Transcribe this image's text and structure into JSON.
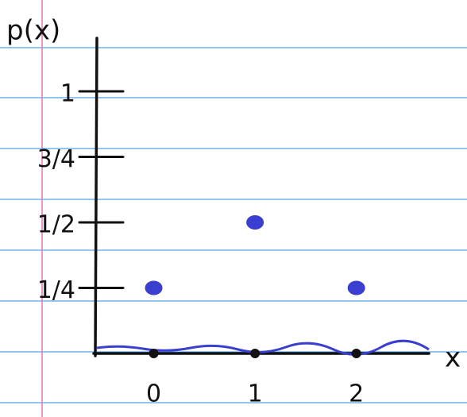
{
  "chart_data": {
    "type": "scatter",
    "x_label": "x",
    "y_label": "p(x)",
    "x": [
      0,
      1,
      2
    ],
    "values": [
      0.25,
      0.5,
      0.25
    ],
    "color": "#3a3fd0",
    "xlim": [
      -0.6,
      2.7
    ],
    "xticks": [
      0,
      1,
      2
    ],
    "ylim": [
      0,
      1.2
    ],
    "yticks": [
      {
        "value": 0.25,
        "label": "1/4"
      },
      {
        "value": 0.5,
        "label": "1/2"
      },
      {
        "value": 0.75,
        "label": "3/4"
      },
      {
        "value": 1,
        "label": "1"
      }
    ]
  }
}
